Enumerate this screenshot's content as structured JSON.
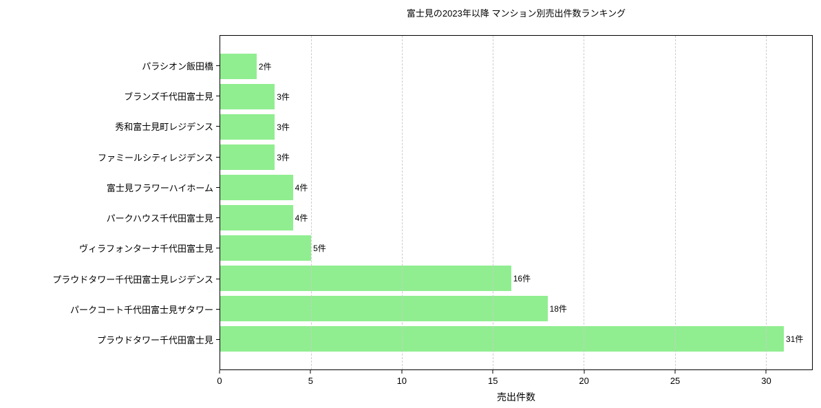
{
  "chart_data": {
    "type": "bar",
    "orientation": "horizontal",
    "title": "富士見の2023年以降 マンション別売出件数ランキング",
    "xlabel": "売出件数",
    "ylabel": "",
    "categories": [
      "パラシオン飯田橋",
      "ブランズ千代田富士見",
      "秀和富士見町レジデンス",
      "ファミールシティレジデンス",
      "富士見フラワーハイホーム",
      "パークハウス千代田富士見",
      "ヴィラフォンターナ千代田富士見",
      "プラウドタワー千代田富士見レジデンス",
      "パークコート千代田富士見ザタワー",
      "プラウドタワー千代田富士見"
    ],
    "values": [
      2,
      3,
      3,
      3,
      4,
      4,
      5,
      16,
      18,
      31
    ],
    "value_labels": [
      "2件",
      "3件",
      "3件",
      "3件",
      "4件",
      "4件",
      "5件",
      "16件",
      "18件",
      "31件"
    ],
    "xticks": [
      0,
      5,
      10,
      15,
      20,
      25,
      30
    ],
    "xlim": [
      0,
      32.55
    ],
    "grid": "vertical-dashed",
    "legend": "none",
    "bar_color": "#90ee90",
    "grid_color": "#cccccc",
    "axis_color": "#000000",
    "text_color": "#000000",
    "background_color": "#ffffff"
  }
}
